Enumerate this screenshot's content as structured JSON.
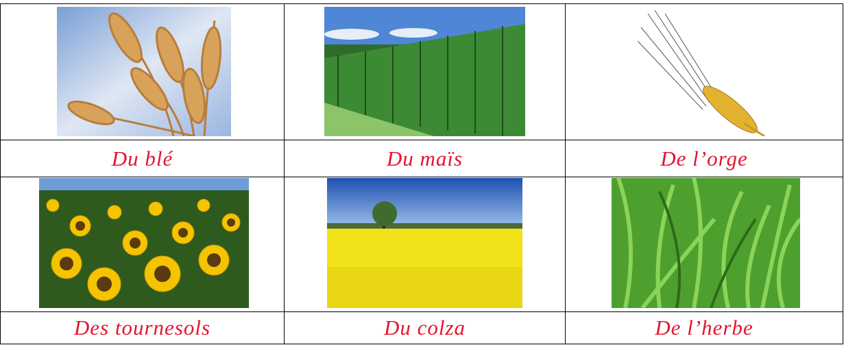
{
  "table": {
    "rows": [
      [
        "Du blé",
        "Du maïs",
        "De l’orge"
      ],
      [
        "Des tournesols",
        "Du colza",
        "De l’herbe"
      ]
    ]
  }
}
